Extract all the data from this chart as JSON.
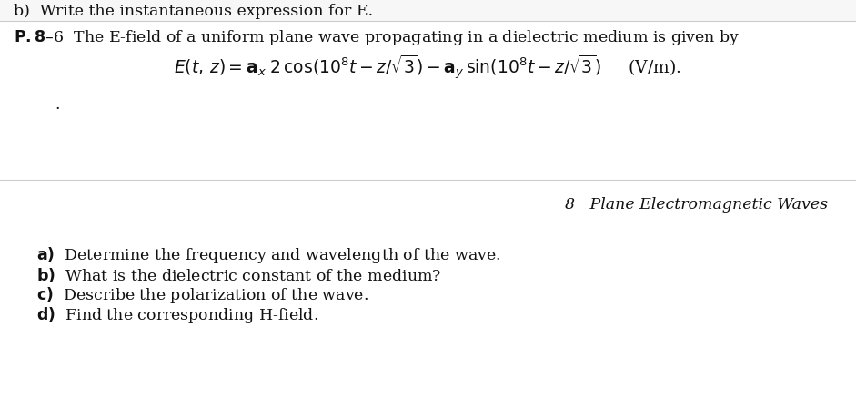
{
  "background_color": "#ffffff",
  "top_text": "b)  Write the instantaneous expression for E.",
  "problem_label_bold": "P.8–6",
  "problem_intro": " The E-field of a uniform plane wave propagating in a dielectric medium is given by",
  "chapter_label": "8   Plane Electromagnetic Waves",
  "item_a": "a)  Determine the frequency and wavelength of the wave.",
  "item_b": "b)  What is the dielectric constant of the medium?",
  "item_c": "c)  Describe the polarization of the wave.",
  "item_d": "d)  Find the corresponding H-field.",
  "font_size_main": 12.5,
  "font_size_eq": 13.5,
  "top_strip_color": "#f5f5f5",
  "divider_color": "#dddddd",
  "text_color": "#111111"
}
